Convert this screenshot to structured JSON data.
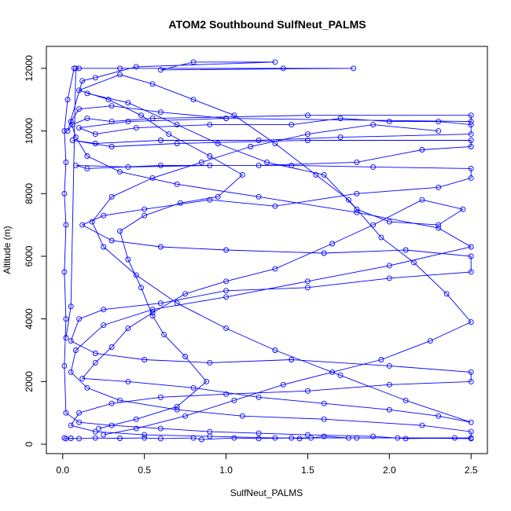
{
  "chart_data": {
    "type": "scatter",
    "style": "points-connected-by-lines",
    "title": "ATOM2 Southbound SulfNeut_PALMS",
    "xlabel": "SulfNeut_PALMS",
    "ylabel": "Altitude (m)",
    "xlim": [
      -0.1,
      2.6
    ],
    "ylim": [
      -300,
      12700
    ],
    "x_ticks": [
      "0.0",
      "0.5",
      "1.0",
      "1.5",
      "2.0",
      "2.5"
    ],
    "y_ticks": [
      "0",
      "2000",
      "4000",
      "6000",
      "8000",
      "10000",
      "12000"
    ],
    "grid": false,
    "color": "#0000ff",
    "series": [
      {
        "values_xy": [
          [
            0.02,
            3400
          ],
          [
            0.05,
            4400
          ],
          [
            0.08,
            12000
          ],
          [
            0.1,
            12000
          ],
          [
            0.35,
            12000
          ],
          [
            1.35,
            12000
          ],
          [
            1.78,
            12000
          ],
          [
            0.6,
            11950
          ],
          [
            0.8,
            12200
          ],
          [
            1.3,
            12200
          ],
          [
            0.45,
            12050
          ],
          [
            0.2,
            11700
          ],
          [
            0.12,
            11600
          ],
          [
            0.03,
            10000
          ],
          [
            0.06,
            10200
          ],
          [
            0.15,
            10400
          ],
          [
            0.3,
            10300
          ],
          [
            0.55,
            10400
          ],
          [
            1.5,
            10500
          ],
          [
            2.5,
            10500
          ],
          [
            2.5,
            10300
          ],
          [
            1.0,
            10400
          ],
          [
            0.4,
            10300
          ],
          [
            0.1,
            10100
          ],
          [
            0.2,
            9900
          ],
          [
            0.45,
            10100
          ],
          [
            0.9,
            10200
          ],
          [
            1.4,
            10200
          ],
          [
            1.7,
            10400
          ],
          [
            2.0,
            10300
          ],
          [
            2.3,
            10300
          ],
          [
            2.5,
            10200
          ],
          [
            2.5,
            9900
          ],
          [
            1.7,
            9800
          ],
          [
            1.2,
            9700
          ],
          [
            0.6,
            9700
          ],
          [
            0.2,
            9600
          ],
          [
            0.06,
            9700
          ],
          [
            0.3,
            9500
          ],
          [
            0.7,
            9600
          ],
          [
            1.5,
            9700
          ],
          [
            2.5,
            9700
          ],
          [
            2.5,
            9500
          ],
          [
            2.2,
            9400
          ],
          [
            1.8,
            9000
          ],
          [
            1.2,
            8900
          ],
          [
            0.6,
            8900
          ],
          [
            0.15,
            8800
          ],
          [
            0.08,
            8900
          ],
          [
            0.4,
            8850
          ],
          [
            0.9,
            8900
          ],
          [
            1.4,
            8900
          ],
          [
            1.9,
            8850
          ],
          [
            2.5,
            8800
          ],
          [
            2.5,
            8500
          ],
          [
            2.3,
            8200
          ],
          [
            1.8,
            8000
          ],
          [
            1.3,
            7600
          ],
          [
            0.9,
            7800
          ],
          [
            0.5,
            7500
          ],
          [
            0.25,
            7300
          ],
          [
            0.12,
            7000
          ],
          [
            0.3,
            6500
          ],
          [
            0.6,
            6300
          ],
          [
            1.0,
            6200
          ],
          [
            1.6,
            6100
          ],
          [
            2.1,
            6200
          ],
          [
            2.5,
            6000
          ],
          [
            2.5,
            5500
          ],
          [
            2.0,
            5300
          ],
          [
            1.5,
            5000
          ],
          [
            1.0,
            4900
          ],
          [
            0.6,
            4500
          ],
          [
            0.25,
            4300
          ],
          [
            0.1,
            4000
          ],
          [
            0.05,
            3300
          ],
          [
            0.2,
            2900
          ],
          [
            0.5,
            2700
          ],
          [
            0.9,
            2600
          ],
          [
            1.4,
            2700
          ],
          [
            2.0,
            2500
          ],
          [
            2.5,
            2300
          ],
          [
            2.5,
            2000
          ],
          [
            2.0,
            1900
          ],
          [
            1.5,
            1700
          ],
          [
            1.0,
            1600
          ],
          [
            0.6,
            1500
          ],
          [
            0.3,
            1300
          ],
          [
            0.1,
            1000
          ],
          [
            0.05,
            600
          ],
          [
            0.2,
            400
          ],
          [
            0.5,
            300
          ],
          [
            0.9,
            250
          ],
          [
            1.3,
            200
          ],
          [
            1.8,
            200
          ],
          [
            2.5,
            200
          ],
          [
            2.5,
            400
          ],
          [
            2.2,
            600
          ],
          [
            1.6,
            800
          ],
          [
            1.1,
            900
          ],
          [
            0.7,
            1100
          ],
          [
            0.35,
            1400
          ],
          [
            0.15,
            1800
          ],
          [
            0.05,
            2300
          ],
          [
            0.08,
            3000
          ],
          [
            0.25,
            3800
          ],
          [
            0.55,
            4300
          ],
          [
            1.0,
            4700
          ],
          [
            1.5,
            5200
          ],
          [
            2.0,
            5700
          ],
          [
            2.5,
            6300
          ],
          [
            2.3,
            6900
          ],
          [
            1.8,
            7400
          ],
          [
            1.2,
            7900
          ],
          [
            0.7,
            8300
          ],
          [
            0.35,
            8700
          ],
          [
            0.15,
            9200
          ],
          [
            0.08,
            9800
          ],
          [
            0.05,
            10300
          ],
          [
            0.1,
            10700
          ],
          [
            0.3,
            10800
          ],
          [
            0.6,
            10600
          ],
          [
            1.0,
            10400
          ]
        ]
      },
      {
        "values_xy": [
          [
            0.01,
            200
          ],
          [
            0.02,
            180
          ],
          [
            0.05,
            190
          ],
          [
            0.1,
            180
          ],
          [
            0.2,
            200
          ],
          [
            0.35,
            190
          ],
          [
            0.5,
            200
          ],
          [
            0.6,
            180
          ],
          [
            0.8,
            200
          ],
          [
            0.85,
            150
          ],
          [
            1.05,
            200
          ],
          [
            1.2,
            180
          ],
          [
            1.4,
            200
          ],
          [
            1.45,
            180
          ],
          [
            1.52,
            200
          ],
          [
            1.6,
            250
          ],
          [
            1.75,
            200
          ],
          [
            2.05,
            200
          ],
          [
            2.5,
            180
          ],
          [
            2.4,
            200
          ],
          [
            2.1,
            180
          ],
          [
            1.9,
            250
          ],
          [
            1.5,
            300
          ],
          [
            1.2,
            350
          ],
          [
            0.9,
            400
          ],
          [
            0.6,
            500
          ],
          [
            0.3,
            600
          ],
          [
            0.1,
            700
          ],
          [
            0.02,
            1000
          ],
          [
            0.01,
            2500
          ],
          [
            0.02,
            4000
          ],
          [
            0.01,
            5500
          ],
          [
            0.02,
            7000
          ],
          [
            0.01,
            8000
          ],
          [
            0.02,
            9000
          ],
          [
            0.01,
            10000
          ],
          [
            0.03,
            11000
          ],
          [
            0.07,
            12000
          ]
        ]
      },
      {
        "values_xy": [
          [
            0.15,
            11200
          ],
          [
            0.4,
            10900
          ],
          [
            0.7,
            10200
          ],
          [
            0.95,
            9600
          ],
          [
            1.25,
            9000
          ],
          [
            1.6,
            8600
          ],
          [
            1.8,
            7500
          ],
          [
            2.0,
            7100
          ],
          [
            2.3,
            7000
          ],
          [
            2.45,
            7500
          ],
          [
            2.2,
            7800
          ],
          [
            1.9,
            7000
          ],
          [
            1.65,
            6400
          ],
          [
            1.3,
            5600
          ],
          [
            1.0,
            5200
          ],
          [
            0.75,
            4800
          ],
          [
            0.55,
            4200
          ],
          [
            0.4,
            3700
          ],
          [
            0.3,
            3100
          ],
          [
            0.2,
            2600
          ],
          [
            0.12,
            2100
          ],
          [
            0.4,
            2000
          ],
          [
            0.8,
            1800
          ],
          [
            1.2,
            1500
          ],
          [
            1.6,
            1300
          ],
          [
            2.0,
            1100
          ],
          [
            2.3,
            900
          ],
          [
            2.5,
            700
          ],
          [
            2.1,
            1400
          ],
          [
            1.7,
            2200
          ],
          [
            1.3,
            3000
          ],
          [
            1.0,
            3700
          ],
          [
            0.7,
            4500
          ],
          [
            0.45,
            5400
          ],
          [
            0.25,
            6300
          ],
          [
            0.18,
            7100
          ],
          [
            0.3,
            7900
          ],
          [
            0.55,
            8500
          ],
          [
            0.85,
            9000
          ],
          [
            1.15,
            9500
          ],
          [
            1.5,
            9900
          ],
          [
            1.9,
            10200
          ],
          [
            2.3,
            10000
          ]
        ]
      },
      {
        "values_xy": [
          [
            0.22,
            500
          ],
          [
            0.45,
            800
          ],
          [
            0.7,
            1200
          ],
          [
            0.88,
            2000
          ],
          [
            0.75,
            2800
          ],
          [
            0.62,
            3500
          ],
          [
            0.55,
            4100
          ],
          [
            0.48,
            5000
          ],
          [
            0.4,
            5900
          ],
          [
            0.35,
            6800
          ],
          [
            0.5,
            7300
          ],
          [
            0.72,
            7700
          ],
          [
            0.95,
            7900
          ],
          [
            1.1,
            8600
          ],
          [
            0.9,
            9200
          ],
          [
            0.65,
            9900
          ],
          [
            0.48,
            10500
          ],
          [
            0.28,
            11000
          ],
          [
            0.1,
            11300
          ],
          [
            0.35,
            11800
          ],
          [
            0.55,
            11500
          ],
          [
            0.8,
            11000
          ],
          [
            1.05,
            10500
          ],
          [
            1.3,
            9600
          ],
          [
            1.55,
            8600
          ],
          [
            1.75,
            7800
          ],
          [
            1.95,
            6600
          ],
          [
            2.15,
            5800
          ],
          [
            2.35,
            4800
          ],
          [
            2.5,
            3900
          ],
          [
            2.25,
            3300
          ],
          [
            1.95,
            2700
          ],
          [
            1.65,
            2300
          ],
          [
            1.35,
            1900
          ],
          [
            1.05,
            1400
          ],
          [
            0.75,
            900
          ],
          [
            0.45,
            500
          ],
          [
            0.25,
            300
          ]
        ]
      }
    ]
  }
}
